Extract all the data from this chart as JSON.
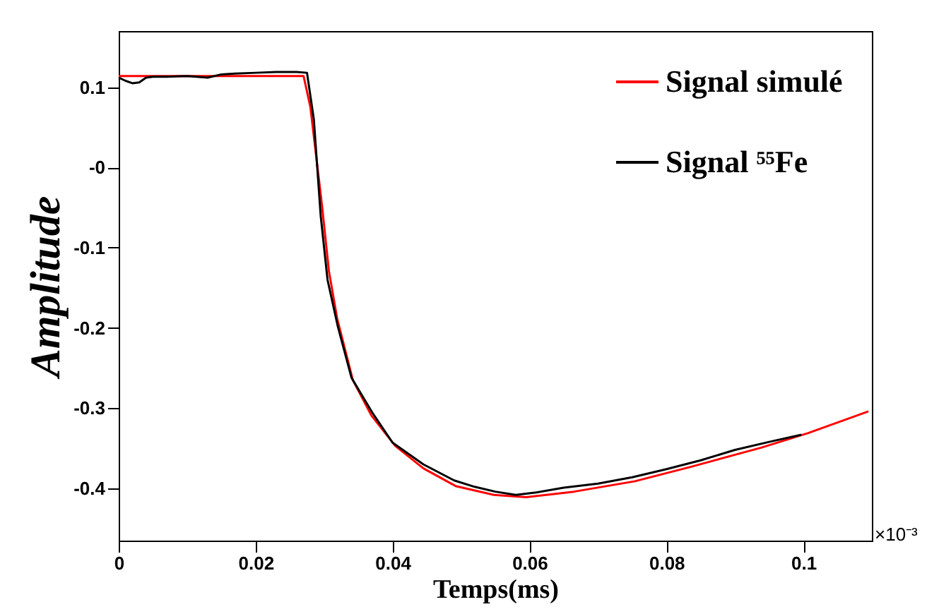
{
  "chart_data": {
    "type": "line",
    "xlabel": "Temps(ms)",
    "ylabel": "Amplitude",
    "annotations": [
      "×10⁻³"
    ],
    "xlim": [
      0,
      0.11
    ],
    "ylim": [
      -0.465,
      0.17
    ],
    "xticks": [
      0,
      0.02,
      0.04,
      0.06,
      0.08,
      0.1
    ],
    "yticks": [
      -0.4,
      -0.3,
      -0.2,
      -0.1,
      {
        "value": 0,
        "label": "-0"
      },
      0.1
    ],
    "legend": "top right",
    "grid": false,
    "marker": "none",
    "line_style": "solid",
    "series": [
      {
        "name": "Signal simulé",
        "color": "#ff0000",
        "x": [
          0,
          0.027,
          0.028,
          0.0297,
          0.0307,
          0.0319,
          0.0342,
          0.0369,
          0.0404,
          0.0445,
          0.0492,
          0.0548,
          0.0595,
          0.0665,
          0.0754,
          0.0836,
          0.0939,
          0.1007,
          0.1095
        ],
        "values": [
          0.114,
          0.114,
          0.075,
          -0.048,
          -0.129,
          -0.188,
          -0.265,
          -0.309,
          -0.347,
          -0.375,
          -0.397,
          -0.408,
          -0.411,
          -0.404,
          -0.391,
          -0.373,
          -0.349,
          -0.331,
          -0.304
        ]
      },
      {
        "name": "Signal ⁵⁵Fe",
        "color": "#000000",
        "x": [
          0,
          0.001,
          0.002,
          0.003,
          0.004,
          0.005,
          0.007,
          0.01,
          0.013,
          0.015,
          0.017,
          0.02,
          0.023,
          0.026,
          0.0275,
          0.0285,
          0.0295,
          0.0305,
          0.032,
          0.034,
          0.037,
          0.04,
          0.0445,
          0.049,
          0.052,
          0.055,
          0.058,
          0.061,
          0.065,
          0.07,
          0.075,
          0.08,
          0.085,
          0.09,
          0.095,
          0.0997
        ],
        "values": [
          0.112,
          0.108,
          0.105,
          0.106,
          0.112,
          0.113,
          0.113,
          0.114,
          0.112,
          0.116,
          0.117,
          0.118,
          0.119,
          0.119,
          0.118,
          0.06,
          -0.06,
          -0.14,
          -0.198,
          -0.262,
          -0.305,
          -0.343,
          -0.37,
          -0.39,
          -0.398,
          -0.404,
          -0.408,
          -0.405,
          -0.399,
          -0.394,
          -0.386,
          -0.376,
          -0.365,
          -0.352,
          -0.342,
          -0.333
        ]
      }
    ]
  }
}
